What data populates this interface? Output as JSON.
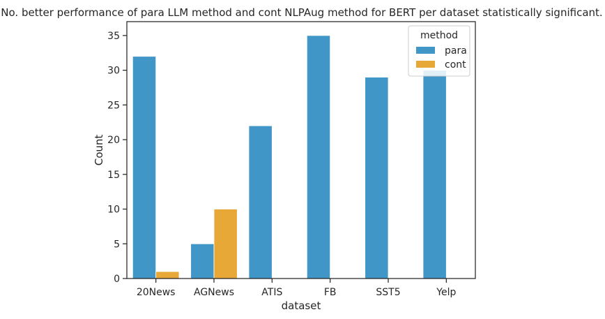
{
  "chart_data": {
    "type": "bar",
    "title": "No. better performance of para LLM method and cont NLPAug method for BERT per dataset statistically significant.",
    "xlabel": "dataset",
    "ylabel": "Count",
    "categories": [
      "20News",
      "AGNews",
      "ATIS",
      "FB",
      "SST5",
      "Yelp"
    ],
    "series": [
      {
        "name": "para",
        "color": "#4196c8",
        "values": [
          32,
          5,
          22,
          35,
          29,
          30
        ]
      },
      {
        "name": "cont",
        "color": "#e8a838",
        "values": [
          1,
          10,
          0,
          0,
          0,
          0
        ]
      }
    ],
    "ylim": [
      0,
      37
    ],
    "yticks": [
      0,
      5,
      10,
      15,
      20,
      25,
      30,
      35
    ],
    "grid": false,
    "legend": {
      "title": "method",
      "placement": "top-right"
    }
  }
}
